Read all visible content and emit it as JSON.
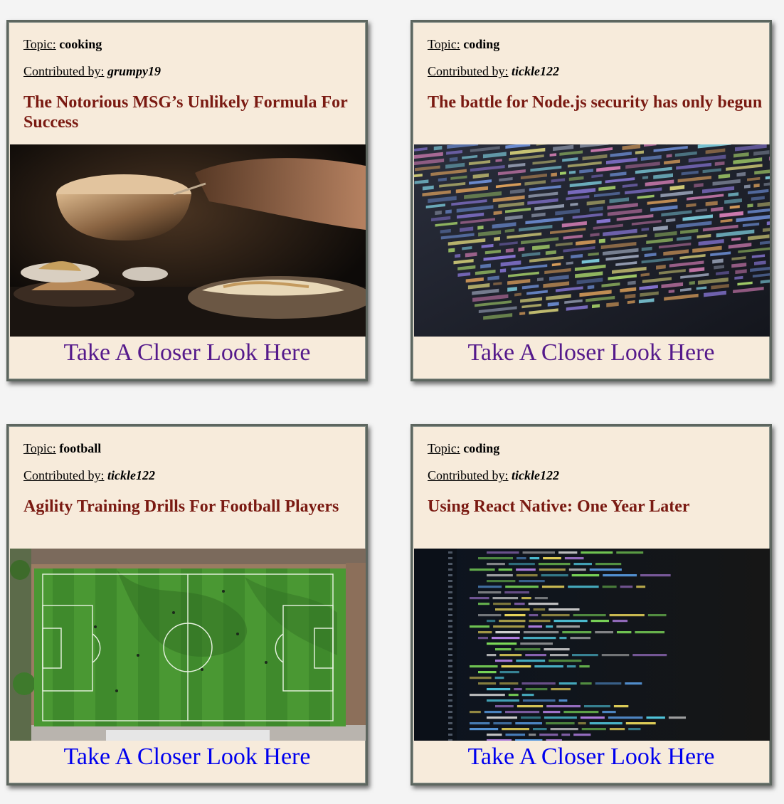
{
  "labels": {
    "topic": "Topic:",
    "contributed_by": "Contributed by:",
    "cta": "Take A Closer Look Here"
  },
  "colors": {
    "card_bg": "#f7ebdb",
    "title": "#7a1a12",
    "link": "#0000ee",
    "link_visited": "#551a8b"
  },
  "cards": [
    {
      "topic": "cooking",
      "user": "grumpy19",
      "title": "The Notorious MSG’s Unlikely Formula For Success",
      "image": "cooking-photo",
      "link_state": "visited"
    },
    {
      "topic": "coding",
      "user": "tickle122",
      "title": "The battle for Node.js security has only begun",
      "image": "code-screen-photo",
      "link_state": "visited"
    },
    {
      "topic": "football",
      "user": "tickle122",
      "title": "Agility Training Drills For Football Players",
      "image": "football-pitch-photo",
      "link_state": "unvisited"
    },
    {
      "topic": "coding",
      "user": "tickle122",
      "title": "Using React Native: One Year Later",
      "image": "code-editor-photo",
      "link_state": "unvisited"
    }
  ]
}
